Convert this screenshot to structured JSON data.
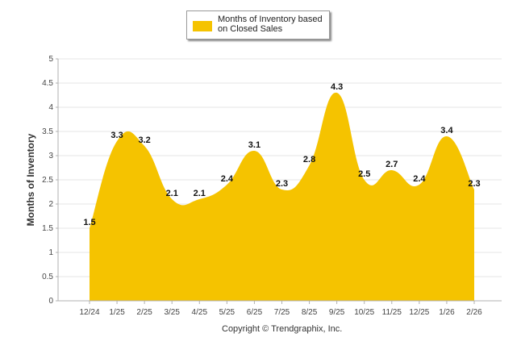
{
  "legend": {
    "label": "Months of Inventory based on Closed Sales"
  },
  "copyright": "Copyright © Trendgraphix, Inc.",
  "colors": {
    "area": "#f5c300",
    "grid": "#e6e6e6",
    "axis": "#b0b0b0"
  },
  "chart_data": {
    "type": "area",
    "title": "",
    "xlabel": "",
    "ylabel": "Months of Inventory",
    "categories": [
      "12/24",
      "1/25",
      "2/25",
      "3/25",
      "4/25",
      "5/25",
      "6/25",
      "7/25",
      "8/25",
      "9/25",
      "10/25",
      "11/25",
      "12/25",
      "1/26",
      "2/26"
    ],
    "series": [
      {
        "name": "Months of Inventory based on Closed Sales",
        "values": [
          1.5,
          3.3,
          3.2,
          2.1,
          2.1,
          2.4,
          3.1,
          2.3,
          2.8,
          4.3,
          2.5,
          2.7,
          2.4,
          3.4,
          2.3
        ]
      }
    ],
    "data_labels": [
      "1.5",
      "3.3",
      "3.2",
      "2.1",
      "2.1",
      "2.4",
      "3.1",
      "2.3",
      "2.8",
      "4.3",
      "2.5",
      "2.7",
      "2.4",
      "3.4",
      "2.3"
    ],
    "yticks": [
      "0",
      "0.5",
      "1",
      "1.5",
      "2",
      "2.5",
      "3",
      "3.5",
      "4",
      "4.5",
      "5"
    ],
    "ylim": [
      0,
      5
    ],
    "grid": true,
    "legend_position": "top-center"
  }
}
